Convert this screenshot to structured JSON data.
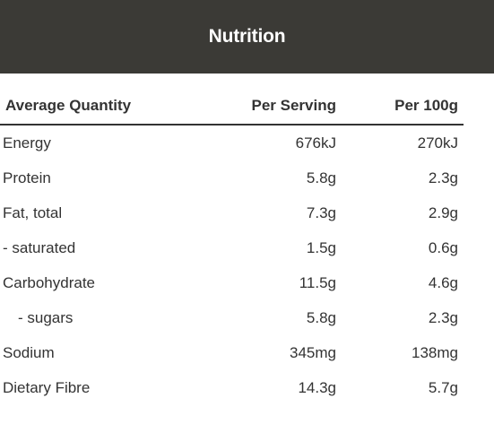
{
  "header": {
    "title": "Nutrition",
    "background_color": "#3b3a36",
    "text_color": "#ffffff"
  },
  "table": {
    "columns": [
      "Average Quantity",
      "Per Serving",
      "Per 100g"
    ],
    "rows": [
      {
        "label": "Energy",
        "per_serving": "676kJ",
        "per_100g": "270kJ",
        "indent": false
      },
      {
        "label": "Protein",
        "per_serving": "5.8g",
        "per_100g": "2.3g",
        "indent": false
      },
      {
        "label": "Fat, total",
        "per_serving": "7.3g",
        "per_100g": "2.9g",
        "indent": false
      },
      {
        "label": "- saturated",
        "per_serving": "1.5g",
        "per_100g": "0.6g",
        "indent": false
      },
      {
        "label": "Carbohydrate",
        "per_serving": "11.5g",
        "per_100g": "4.6g",
        "indent": false
      },
      {
        "label": "- sugars",
        "per_serving": "5.8g",
        "per_100g": "2.3g",
        "indent": true
      },
      {
        "label": "Sodium",
        "per_serving": "345mg",
        "per_100g": "138mg",
        "indent": false
      },
      {
        "label": "Dietary Fibre",
        "per_serving": "14.3g",
        "per_100g": "5.7g",
        "indent": false
      }
    ]
  }
}
